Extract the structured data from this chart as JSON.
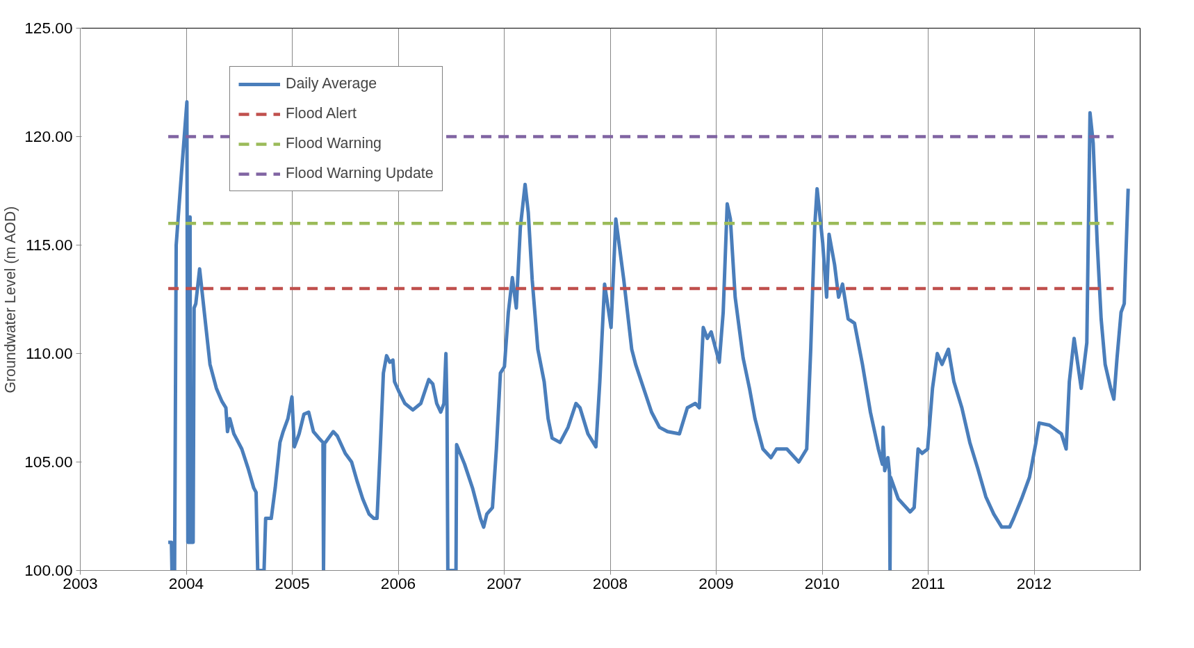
{
  "chart_data": {
    "type": "line",
    "ylabel": "Groundwater Level (m AOD)",
    "xlim": [
      2003,
      2013
    ],
    "xticks": [
      2003,
      2004,
      2005,
      2006,
      2007,
      2008,
      2009,
      2010,
      2011,
      2012
    ],
    "ylim": [
      100,
      125
    ],
    "yticks": [
      {
        "value": 100,
        "label": "100.00"
      },
      {
        "value": 105,
        "label": "105.00"
      },
      {
        "value": 110,
        "label": "110.00"
      },
      {
        "value": 115,
        "label": "115.00"
      },
      {
        "value": 120,
        "label": "120.00"
      },
      {
        "value": 125,
        "label": "125.00"
      }
    ],
    "grid": "x",
    "legend": "top left",
    "marker": "none",
    "series": [
      {
        "name": "Daily Average",
        "color": "#4a7ebb",
        "line_style": "solid",
        "x": [
          2003.83,
          2003.86,
          2003.865,
          2003.89,
          2003.905,
          2003.95,
          2004.006,
          2004.015,
          2004.03,
          2004.036,
          2004.04,
          2004.065,
          2004.074,
          2004.09,
          2004.126,
          2004.186,
          2004.224,
          2004.284,
          2004.336,
          2004.374,
          2004.389,
          2004.411,
          2004.449,
          2004.524,
          2004.584,
          2004.637,
          2004.659,
          2004.674,
          2004.734,
          2004.749,
          2004.802,
          2004.839,
          2004.884,
          2004.914,
          2004.959,
          2004.997,
          2005.02,
          2005.065,
          2005.11,
          2005.155,
          2005.2,
          2005.252,
          2005.29,
          2005.295,
          2005.305,
          2005.312,
          2005.387,
          2005.425,
          2005.5,
          2005.56,
          2005.613,
          2005.665,
          2005.725,
          2005.77,
          2005.8,
          2005.83,
          2005.86,
          2005.89,
          2005.92,
          2005.95,
          2005.965,
          2006.011,
          2006.063,
          2006.138,
          2006.213,
          2006.288,
          2006.326,
          2006.363,
          2006.401,
          2006.431,
          2006.45,
          2006.46,
          2006.468,
          2006.545,
          2006.551,
          2006.626,
          2006.701,
          2006.776,
          2006.806,
          2006.836,
          2006.889,
          2006.926,
          2006.964,
          2007.002,
          2007.039,
          2007.077,
          2007.114,
          2007.152,
          2007.197,
          2007.227,
          2007.264,
          2007.317,
          2007.377,
          2007.414,
          2007.452,
          2007.527,
          2007.602,
          2007.677,
          2007.715,
          2007.79,
          2007.865,
          2007.902,
          2007.947,
          2008.008,
          2008.053,
          2008.128,
          2008.203,
          2008.24,
          2008.315,
          2008.39,
          2008.465,
          2008.541,
          2008.653,
          2008.728,
          2008.803,
          2008.841,
          2008.878,
          2008.916,
          2008.953,
          2009.029,
          2009.066,
          2009.104,
          2009.134,
          2009.179,
          2009.254,
          2009.314,
          2009.366,
          2009.441,
          2009.517,
          2009.569,
          2009.667,
          2009.779,
          2009.854,
          2009.892,
          2009.929,
          2009.952,
          2010.005,
          2010.042,
          2010.065,
          2010.117,
          2010.155,
          2010.192,
          2010.245,
          2010.305,
          2010.38,
          2010.455,
          2010.53,
          2010.568,
          2010.575,
          2010.59,
          2010.62,
          2010.635,
          2010.64,
          2010.645,
          2010.718,
          2010.793,
          2010.83,
          2010.868,
          2010.905,
          2010.943,
          2010.995,
          2011.041,
          2011.086,
          2011.131,
          2011.191,
          2011.243,
          2011.318,
          2011.393,
          2011.468,
          2011.544,
          2011.619,
          2011.694,
          2011.769,
          2011.806,
          2011.881,
          2011.956,
          2012.017,
          2012.047,
          2012.144,
          2012.257,
          2012.302,
          2012.332,
          2012.377,
          2012.444,
          2012.497,
          2012.527,
          2012.557,
          2012.595,
          2012.632,
          2012.67,
          2012.722,
          2012.752,
          2012.782,
          2012.82,
          2012.85,
          2012.887
        ],
        "values": [
          101.3,
          101.3,
          100,
          100,
          115,
          118,
          121.6,
          101.3,
          101.3,
          116.3,
          101.3,
          101.3,
          112.1,
          112.3,
          113.9,
          111.2,
          109.5,
          108.4,
          107.8,
          107.5,
          106.4,
          107,
          106.3,
          105.6,
          104.7,
          103.8,
          103.6,
          100,
          100,
          102.4,
          102.4,
          103.8,
          105.9,
          106.4,
          107,
          108,
          105.7,
          106.3,
          107.2,
          107.3,
          106.4,
          106.1,
          105.9,
          100,
          105.9,
          105.9,
          106.4,
          106.2,
          105.4,
          105,
          104.1,
          103.3,
          102.6,
          102.4,
          102.4,
          105.6,
          109.1,
          109.9,
          109.6,
          109.7,
          108.7,
          108.2,
          107.7,
          107.4,
          107.7,
          108.8,
          108.6,
          107.7,
          107.3,
          107.7,
          110,
          107.5,
          100,
          100,
          105.8,
          104.9,
          103.8,
          102.4,
          102,
          102.6,
          102.9,
          105.6,
          109.1,
          109.4,
          111.9,
          113.5,
          112.1,
          115.8,
          117.8,
          116.5,
          113.4,
          110.2,
          108.7,
          107,
          106.1,
          105.9,
          106.6,
          107.7,
          107.5,
          106.3,
          105.7,
          108.7,
          113.2,
          111.2,
          116.2,
          113.4,
          110.2,
          109.5,
          108.4,
          107.3,
          106.6,
          106.4,
          106.3,
          107.5,
          107.7,
          107.5,
          111.2,
          110.7,
          111,
          109.6,
          111.9,
          116.9,
          116.2,
          112.6,
          109.8,
          108.4,
          107,
          105.6,
          105.2,
          105.6,
          105.6,
          105,
          105.6,
          110.2,
          115.8,
          117.6,
          115.1,
          112.6,
          115.5,
          114.1,
          112.6,
          113.2,
          111.6,
          111.4,
          109.5,
          107.3,
          105.6,
          104.9,
          106.6,
          104.6,
          105.2,
          104.5,
          100,
          104.3,
          103.3,
          102.9,
          102.7,
          102.9,
          105.6,
          105.4,
          105.6,
          108.4,
          110,
          109.5,
          110.2,
          108.7,
          107.5,
          105.9,
          104.7,
          103.4,
          102.6,
          102,
          102,
          102.4,
          103.3,
          104.3,
          105.9,
          106.8,
          106.7,
          106.3,
          105.6,
          108.7,
          110.7,
          108.4,
          110.5,
          121.1,
          119.7,
          115.1,
          111.6,
          109.5,
          108.4,
          107.9,
          109.8,
          111.9,
          112.3,
          117.6
        ]
      },
      {
        "name": "Flood Alert",
        "color": "#c0504d",
        "line_style": "dashed",
        "x": [
          2003.83,
          2012.75
        ],
        "values": [
          113,
          113
        ]
      },
      {
        "name": "Flood Warning",
        "color": "#9bbb59",
        "line_style": "dashed",
        "x": [
          2003.83,
          2012.75
        ],
        "values": [
          116,
          116
        ]
      },
      {
        "name": "Flood Warning Update",
        "color": "#8064a2",
        "line_style": "dashed",
        "x": [
          2003.83,
          2012.75
        ],
        "values": [
          120,
          120
        ]
      }
    ]
  }
}
